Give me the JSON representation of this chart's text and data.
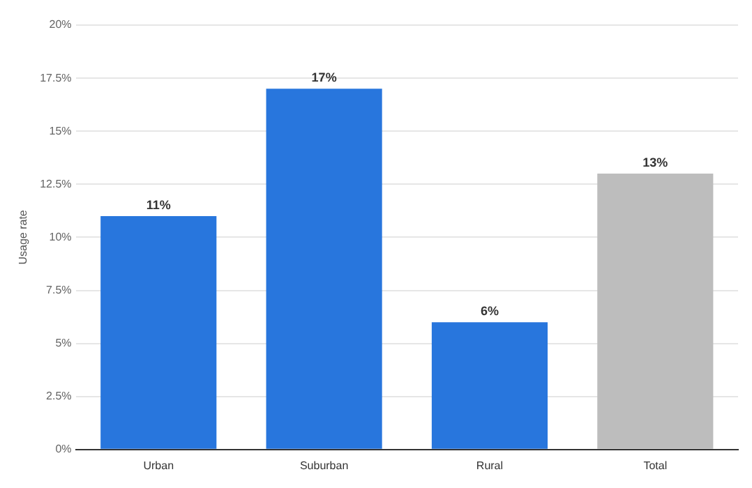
{
  "chart_data": {
    "type": "bar",
    "ylabel": "Usage rate",
    "categories": [
      "Urban",
      "Suburban",
      "Rural",
      "Total"
    ],
    "values": [
      11,
      17,
      6,
      13
    ],
    "colors": [
      "#2876dd",
      "#2876dd",
      "#2876dd",
      "#bdbdbd"
    ],
    "value_labels": [
      "11%",
      "17%",
      "6%",
      "13%"
    ],
    "ylim": [
      0,
      20
    ],
    "yticks": [
      {
        "value": 0,
        "label": "0%"
      },
      {
        "value": 2.5,
        "label": "2.5%"
      },
      {
        "value": 5,
        "label": "5%"
      },
      {
        "value": 7.5,
        "label": "7.5%"
      },
      {
        "value": 10,
        "label": "10%"
      },
      {
        "value": 12.5,
        "label": "12.5%"
      },
      {
        "value": 15,
        "label": "15%"
      },
      {
        "value": 17.5,
        "label": "17.5%"
      },
      {
        "value": 20,
        "label": "20%"
      }
    ],
    "grid": "y"
  }
}
